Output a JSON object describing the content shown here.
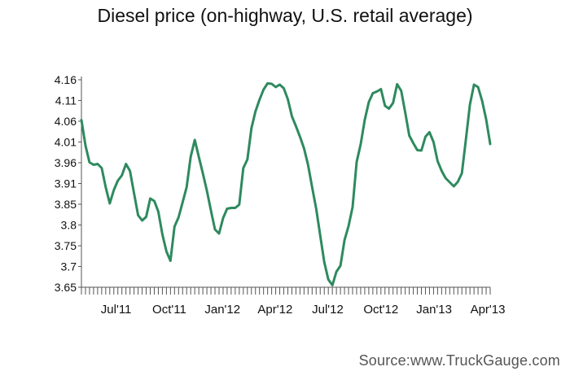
{
  "title": "Diesel price (on-highway, U.S. retail average)",
  "source": "Source:www.TruckGauge.com",
  "colors": {
    "line": "#2e8a5e",
    "axis": "#555555",
    "text": "#111111"
  },
  "chart_data": {
    "type": "line",
    "title": "Diesel price (on-highway, U.S. retail average)",
    "xlabel": "",
    "ylabel": "",
    "ylim": [
      3.65,
      4.16
    ],
    "y_ticks": [
      "4.16",
      "4.11",
      "4.06",
      "4.01",
      "3.96",
      "3.91",
      "3.85",
      "3.8",
      "3.75",
      "3.7",
      "3.65"
    ],
    "x_tick_labels": [
      "Jul'11",
      "Oct'11",
      "Jan'12",
      "Apr'12",
      "Jul'12",
      "Oct'12",
      "Jan'13",
      "Apr'13"
    ],
    "x_range": [
      "2011-05-02",
      "2013-04-08"
    ],
    "grid": false,
    "legend": "none",
    "series": [
      {
        "x": [
          "2011-05-02",
          "2011-05-09",
          "2011-05-16",
          "2011-05-23",
          "2011-05-30",
          "2011-06-06",
          "2011-06-13",
          "2011-06-20",
          "2011-06-27",
          "2011-07-04",
          "2011-07-11",
          "2011-07-18",
          "2011-07-25",
          "2011-08-01",
          "2011-08-08",
          "2011-08-15",
          "2011-08-22",
          "2011-08-29",
          "2011-09-05",
          "2011-09-12",
          "2011-09-19",
          "2011-09-26",
          "2011-10-03",
          "2011-10-10",
          "2011-10-17",
          "2011-10-24",
          "2011-10-31",
          "2011-11-07",
          "2011-11-14",
          "2011-11-21",
          "2011-11-28",
          "2011-12-05",
          "2011-12-12",
          "2011-12-19",
          "2011-12-26",
          "2012-01-02",
          "2012-01-09",
          "2012-01-16",
          "2012-01-23",
          "2012-01-30",
          "2012-02-06",
          "2012-02-13",
          "2012-02-20",
          "2012-02-27",
          "2012-03-05",
          "2012-03-12",
          "2012-03-19",
          "2012-03-26",
          "2012-04-02",
          "2012-04-09",
          "2012-04-16",
          "2012-04-23",
          "2012-04-30",
          "2012-05-07",
          "2012-05-14",
          "2012-05-21",
          "2012-05-28",
          "2012-06-04",
          "2012-06-11",
          "2012-06-18",
          "2012-06-25",
          "2012-07-02",
          "2012-07-09",
          "2012-07-16",
          "2012-07-23",
          "2012-07-30",
          "2012-08-06",
          "2012-08-13",
          "2012-08-20",
          "2012-08-27",
          "2012-09-03",
          "2012-09-10",
          "2012-09-17",
          "2012-09-24",
          "2012-10-01",
          "2012-10-08",
          "2012-10-15",
          "2012-10-22",
          "2012-10-29",
          "2012-11-05",
          "2012-11-12",
          "2012-11-19",
          "2012-11-26",
          "2012-12-03",
          "2012-12-10",
          "2012-12-17",
          "2012-12-24",
          "2012-12-31",
          "2013-01-07",
          "2013-01-14",
          "2013-01-21",
          "2013-01-28",
          "2013-02-04",
          "2013-02-11",
          "2013-02-18",
          "2013-02-25",
          "2013-03-04",
          "2013-03-11",
          "2013-03-18",
          "2013-03-25",
          "2013-04-01",
          "2013-04-08"
        ],
        "y": [
          4.061,
          3.998,
          3.957,
          3.951,
          3.953,
          3.943,
          3.896,
          3.856,
          3.889,
          3.912,
          3.925,
          3.953,
          3.936,
          3.881,
          3.827,
          3.814,
          3.823,
          3.868,
          3.862,
          3.836,
          3.78,
          3.738,
          3.715,
          3.799,
          3.822,
          3.859,
          3.896,
          3.971,
          4.012,
          3.971,
          3.93,
          3.887,
          3.839,
          3.792,
          3.782,
          3.82,
          3.843,
          3.845,
          3.845,
          3.853,
          3.943,
          3.964,
          4.041,
          4.082,
          4.111,
          4.136,
          4.151,
          4.15,
          4.142,
          4.148,
          4.139,
          4.112,
          4.07,
          4.046,
          4.02,
          3.991,
          3.951,
          3.896,
          3.843,
          3.778,
          3.712,
          3.669,
          3.655,
          3.688,
          3.703,
          3.766,
          3.8,
          3.847,
          3.958,
          4.002,
          4.061,
          4.105,
          4.127,
          4.131,
          4.137,
          4.096,
          4.089,
          4.103,
          4.149,
          4.133,
          4.08,
          4.023,
          4.004,
          3.987,
          3.986,
          4.02,
          4.031,
          4.007,
          3.96,
          3.936,
          3.918,
          3.908,
          3.898,
          3.909,
          3.93,
          4.014,
          4.099,
          4.148,
          4.142,
          4.108,
          4.063,
          4.002
        ]
      }
    ]
  }
}
